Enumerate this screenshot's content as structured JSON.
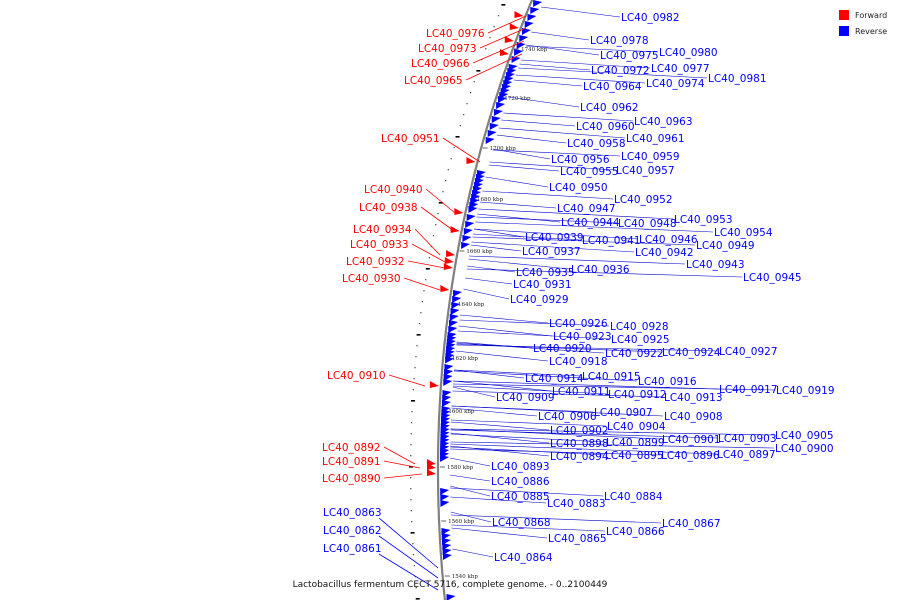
{
  "colors": {
    "forward": "#ff0000",
    "reverse": "#0000ff",
    "axis": "#808080",
    "tick": "#222222",
    "lead": "#0000cc"
  },
  "legend": {
    "forward_label": "Forward",
    "reverse_label": "Reverse"
  },
  "caption": "Lactobacillus fermentum CECT 5716, complete genome. - 0..2100449",
  "scale_ticks": [
    "1740 kbp",
    "1720 kbp",
    "1700 kbp",
    "1680 kbp",
    "1660 kbp",
    "1640 kbp",
    "1620 kbp",
    "1600 kbp",
    "1580 kbp",
    "1560 kbp",
    "1540 kbp"
  ],
  "forward_labels": [
    "LC40_0976",
    "LC40_0973",
    "LC40_0966",
    "LC40_0965",
    "LC40_0951",
    "LC40_0940",
    "LC40_0938",
    "LC40_0934",
    "LC40_0933",
    "LC40_0932",
    "LC40_0930",
    "LC40_0910",
    "LC40_0892",
    "LC40_0891",
    "LC40_0890"
  ],
  "reverse_left_labels": [
    "LC40_0863",
    "LC40_0862",
    "LC40_0861"
  ],
  "reverse_labels": [
    "LC40_0982",
    "LC40_0978",
    "LC40_0980",
    "LC40_0975",
    "LC40_0977",
    "LC40_0972",
    "LC40_0981",
    "LC40_0974",
    "LC40_0964",
    "LC40_0962",
    "LC40_0963",
    "LC40_0960",
    "LC40_0961",
    "LC40_0958",
    "LC40_0959",
    "LC40_0956",
    "LC40_0957",
    "LC40_0955",
    "LC40_0950",
    "LC40_0952",
    "LC40_0947",
    "LC40_0953",
    "LC40_0944",
    "LC40_0948",
    "LC40_0954",
    "LC40_0939",
    "LC40_0941",
    "LC40_0946",
    "LC40_0949",
    "LC40_0937",
    "LC40_0942",
    "LC40_0943",
    "LC40_0935",
    "LC40_0936",
    "LC40_0945",
    "LC40_0931",
    "LC40_0929",
    "LC40_0926",
    "LC40_0928",
    "LC40_0923",
    "LC40_0925",
    "LC40_0920",
    "LC40_0922",
    "LC40_0924",
    "LC40_0927",
    "LC40_0918",
    "LC40_0914",
    "LC40_0915",
    "LC40_0916",
    "LC40_0917",
    "LC40_0919",
    "LC40_0911",
    "LC40_0912",
    "LC40_0913",
    "LC40_0909",
    "LC40_0906",
    "LC40_0907",
    "LC40_0908",
    "LC40_0902",
    "LC40_0904",
    "LC40_0901",
    "LC40_0903",
    "LC40_0905",
    "LC40_0898",
    "LC40_0899",
    "LC40_0900",
    "LC40_0894",
    "LC40_0895",
    "LC40_0896",
    "LC40_0897",
    "LC40_0893",
    "LC40_0886",
    "LC40_0885",
    "LC40_0884",
    "LC40_0883",
    "LC40_0868",
    "LC40_0867",
    "LC40_0866",
    "LC40_0865",
    "LC40_0864"
  ]
}
